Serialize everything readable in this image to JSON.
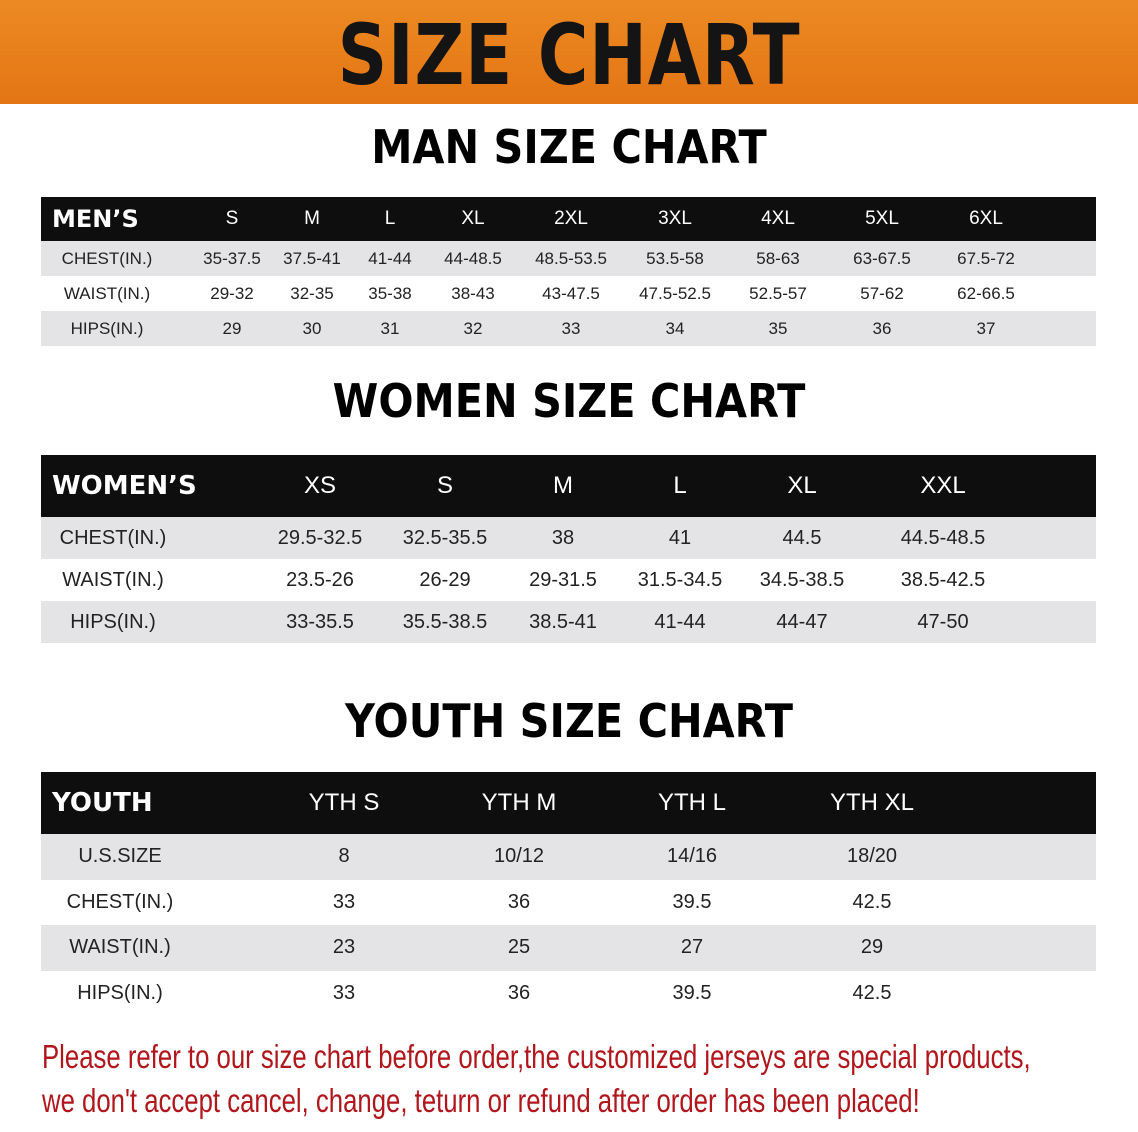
{
  "banner": {
    "title": "SIZE CHART",
    "color": "#e87f1c"
  },
  "men": {
    "title": "MAN SIZE CHART",
    "header": [
      "MEN’S",
      "S",
      "M",
      "L",
      "XL",
      "2XL",
      "3XL",
      "4XL",
      "5XL",
      "6XL"
    ],
    "rows": [
      [
        "CHEST(IN.)",
        "35-37.5",
        "37.5-41",
        "41-44",
        "44-48.5",
        "48.5-53.5",
        "53.5-58",
        "58-63",
        "63-67.5",
        "67.5-72"
      ],
      [
        "WAIST(IN.)",
        "29-32",
        "32-35",
        "35-38",
        "38-43",
        "43-47.5",
        "47.5-52.5",
        "52.5-57",
        "57-62",
        "62-66.5"
      ],
      [
        "HIPS(IN.)",
        "29",
        "30",
        "31",
        "32",
        "33",
        "34",
        "35",
        "36",
        "37"
      ]
    ]
  },
  "women": {
    "title": "WOMEN SIZE CHART",
    "header": [
      "WOMEN’S",
      "XS",
      "S",
      "M",
      "L",
      "XL",
      "XXL"
    ],
    "rows": [
      [
        "CHEST(IN.)",
        "29.5-32.5",
        "32.5-35.5",
        "38",
        "41",
        "44.5",
        "44.5-48.5"
      ],
      [
        "WAIST(IN.)",
        "23.5-26",
        "26-29",
        "29-31.5",
        "31.5-34.5",
        "34.5-38.5",
        "38.5-42.5"
      ],
      [
        "HIPS(IN.)",
        "33-35.5",
        "35.5-38.5",
        "38.5-41",
        "41-44",
        "44-47",
        "47-50"
      ]
    ]
  },
  "youth": {
    "title": "YOUTH SIZE CHART",
    "header": [
      "YOUTH",
      "YTH S",
      "YTH M",
      "YTH L",
      "YTH XL"
    ],
    "rows": [
      [
        "U.S.SIZE",
        "8",
        "10/12",
        "14/16",
        "18/20"
      ],
      [
        "CHEST(IN.)",
        "33",
        "36",
        "39.5",
        "42.5"
      ],
      [
        "WAIST(IN.)",
        "23",
        "25",
        "27",
        "29"
      ],
      [
        "HIPS(IN.)",
        "33",
        "36",
        "39.5",
        "42.5"
      ]
    ]
  },
  "notice": {
    "line1": "Please refer to our size chart before order,the customized jerseys are special products,",
    "line2": "we don't accept cancel, change, teturn or refund after order has been placed!",
    "color": "#b0161c"
  }
}
